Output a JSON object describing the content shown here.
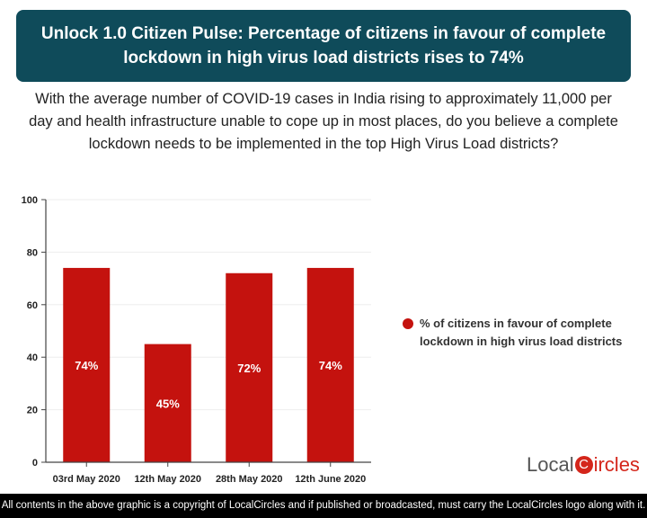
{
  "header": {
    "title": "Unlock 1.0 Citizen Pulse: Percentage of citizens in favour of complete lockdown in high virus load districts rises to 74%"
  },
  "question": "With the average number of COVID-19 cases in India rising to approximately 11,000 per day and health infrastructure unable to cope up in most places, do you believe a complete lockdown needs to be implemented in the top High Virus Load districts?",
  "chart_data": {
    "type": "bar",
    "categories": [
      "03rd May 2020",
      "12th May 2020",
      "28th May 2020",
      "12th June 2020"
    ],
    "series": [
      {
        "name": "% of citizens in favour of complete lockdown in high virus load districts",
        "values": [
          74,
          45,
          72,
          74
        ],
        "color": "#c4120e"
      }
    ],
    "data_labels": [
      "74%",
      "45%",
      "72%",
      "74%"
    ],
    "ylim": [
      0,
      100
    ],
    "yticks": [
      0,
      20,
      40,
      60,
      80,
      100
    ],
    "grid": true,
    "legend_placement": "right"
  },
  "legend": {
    "label_line1": "% of citizens in favour of complete",
    "label_line2": "lockdown in high virus load districts"
  },
  "logo": {
    "text_a": "Local",
    "text_c": "C",
    "text_b": "ircles"
  },
  "footer": "All contents in the above graphic is a copyright of LocalCircles and if published or broadcasted, must carry the LocalCircles logo along with it."
}
